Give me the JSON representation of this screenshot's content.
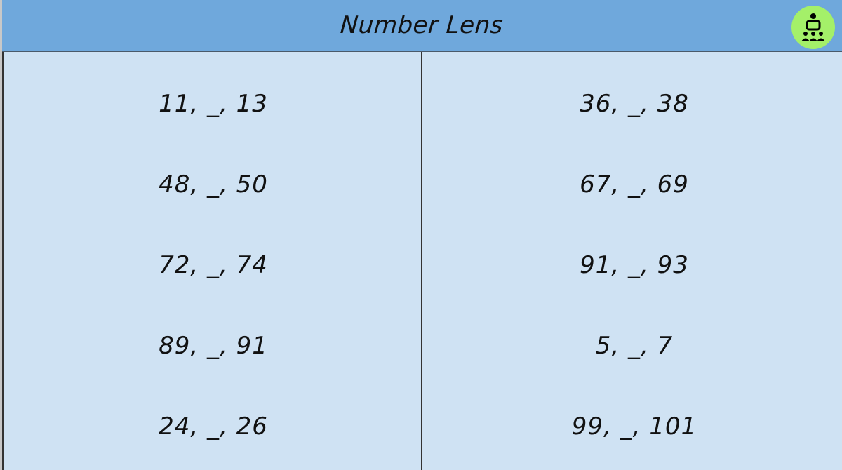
{
  "header": {
    "title": "Number Lens",
    "icon": "teacher-with-group-icon",
    "color": "#6fa8dc",
    "icon_bg": "#a4f069"
  },
  "table": {
    "background": "#cfe2f3",
    "left": [
      "11, _, 13",
      "48, _, 50",
      "72, _, 74",
      "89, _, 91",
      "24, _, 26"
    ],
    "right": [
      "36, _, 38",
      "67, _, 69",
      "91, _, 93",
      "5, _, 7",
      "99, _, 101"
    ]
  }
}
